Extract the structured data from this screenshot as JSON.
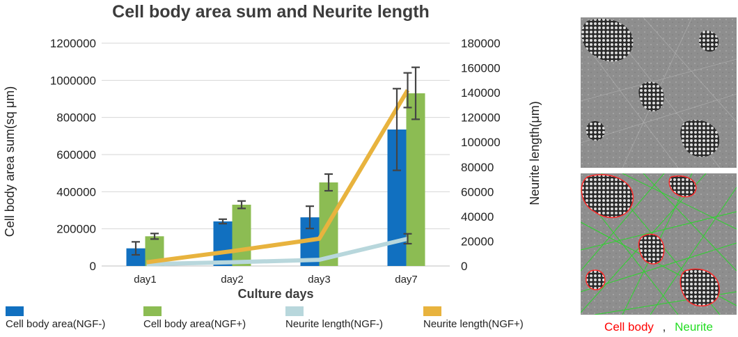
{
  "chart_data": {
    "type": "bar",
    "title": "Cell body area sum  and Neurite length",
    "xlabel": "Culture days",
    "ylabel": "Cell body area sum(sq μm)",
    "y2label": "Neurite length(μm)",
    "categories": [
      "day1",
      "day2",
      "day3",
      "day7"
    ],
    "ylim": [
      0,
      1200000
    ],
    "y2lim": [
      0,
      180000
    ],
    "yticks": [
      "0",
      "200000",
      "400000",
      "600000",
      "800000",
      "1000000",
      "1200000"
    ],
    "y2ticks": [
      "0",
      "20000",
      "40000",
      "60000",
      "80000",
      "100000",
      "120000",
      "140000",
      "160000",
      "180000"
    ],
    "grid": true,
    "legend_position": "bottom",
    "series": [
      {
        "name": "Cell body area(NGF-)",
        "kind": "bar",
        "axis": "left",
        "color": "#1170c0",
        "values": [
          95000,
          240000,
          262000,
          735000
        ],
        "error": [
          35000,
          12000,
          60000,
          220000
        ]
      },
      {
        "name": "Cell body area(NGF+)",
        "kind": "bar",
        "axis": "left",
        "color": "#8cbc53",
        "values": [
          160000,
          330000,
          450000,
          930000
        ],
        "error": [
          15000,
          20000,
          45000,
          140000
        ]
      },
      {
        "name": "Neurite length(NGF-)",
        "kind": "line",
        "axis": "right",
        "color": "#b8d7dc",
        "values": [
          1500,
          3000,
          5000,
          22000
        ],
        "error": [
          0,
          0,
          0,
          4000
        ]
      },
      {
        "name": "Neurite length(NGF+)",
        "kind": "line",
        "axis": "right",
        "color": "#e8b33e",
        "values": [
          3000,
          12000,
          22000,
          142000
        ],
        "error": [
          0,
          0,
          0,
          14000
        ]
      }
    ]
  },
  "images": {
    "caption": {
      "cell_body": "Cell body",
      "separator": ",",
      "neurite": "Neurite",
      "cell_body_color": "#ff0000",
      "neurite_color": "#22dd22"
    }
  }
}
